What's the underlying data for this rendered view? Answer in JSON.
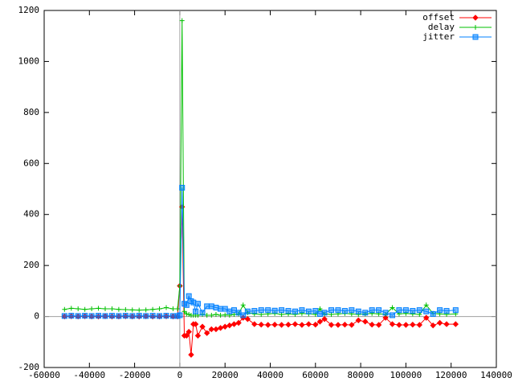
{
  "chart_data": {
    "type": "line",
    "x": [
      -51000,
      -48000,
      -45000,
      -42000,
      -39000,
      -36000,
      -33000,
      -30000,
      -27000,
      -24000,
      -21000,
      -18000,
      -15000,
      -12000,
      -9000,
      -6000,
      -3000,
      -1000,
      0,
      1000,
      2000,
      3000,
      4000,
      5000,
      6000,
      7000,
      8000,
      10000,
      12000,
      14000,
      16000,
      18000,
      20000,
      22000,
      24000,
      26000,
      28000,
      30000,
      33000,
      36000,
      39000,
      42000,
      45000,
      48000,
      51000,
      54000,
      57000,
      60000,
      62000,
      64000,
      67000,
      70000,
      73000,
      76000,
      79000,
      82000,
      85000,
      88000,
      91000,
      94000,
      97000,
      100000,
      103000,
      106000,
      109000,
      112000,
      115000,
      118000,
      122000
    ],
    "series": [
      {
        "name": "offset",
        "color": "#ff0000",
        "marker": "diamond",
        "values": [
          0,
          1,
          0,
          1,
          0,
          0,
          1,
          0,
          0,
          1,
          0,
          0,
          1,
          0,
          0,
          1,
          0,
          0,
          120,
          430,
          -75,
          -75,
          -60,
          -150,
          -30,
          -30,
          -75,
          -40,
          -65,
          -50,
          -50,
          -45,
          -40,
          -35,
          -30,
          -25,
          -5,
          -10,
          -30,
          -32,
          -33,
          -32,
          -33,
          -32,
          -30,
          -33,
          -30,
          -32,
          -20,
          -10,
          -33,
          -33,
          -32,
          -33,
          -15,
          -20,
          -32,
          -33,
          -5,
          -30,
          -33,
          -33,
          -32,
          -33,
          -5,
          -35,
          -25,
          -30,
          -30
        ]
      },
      {
        "name": "delay",
        "color": "#00c000",
        "marker": "plus",
        "values": [
          28,
          32,
          30,
          28,
          30,
          32,
          30,
          30,
          28,
          27,
          26,
          25,
          26,
          28,
          30,
          35,
          30,
          30,
          120,
          1160,
          20,
          10,
          8,
          5,
          5,
          5,
          5,
          8,
          5,
          5,
          8,
          5,
          6,
          5,
          8,
          10,
          45,
          15,
          10,
          8,
          10,
          12,
          8,
          10,
          8,
          12,
          10,
          8,
          30,
          10,
          8,
          10,
          12,
          10,
          8,
          10,
          12,
          10,
          8,
          35,
          10,
          12,
          10,
          8,
          45,
          12,
          10,
          8,
          10
        ]
      },
      {
        "name": "jitter",
        "color": "#0080ff",
        "marker": "square",
        "values": [
          2,
          3,
          2,
          3,
          2,
          3,
          2,
          3,
          2,
          3,
          2,
          3,
          2,
          3,
          2,
          3,
          2,
          2,
          5,
          505,
          50,
          45,
          80,
          60,
          55,
          20,
          50,
          15,
          40,
          40,
          35,
          30,
          30,
          20,
          25,
          15,
          5,
          20,
          22,
          25,
          25,
          23,
          25,
          22,
          20,
          25,
          20,
          22,
          10,
          15,
          25,
          25,
          22,
          25,
          20,
          15,
          25,
          25,
          15,
          5,
          25,
          25,
          22,
          25,
          20,
          10,
          25,
          22,
          25
        ]
      }
    ],
    "xlim": [
      -60000,
      140000
    ],
    "ylim": [
      -200,
      1200
    ],
    "xticks": [
      -60000,
      -40000,
      -20000,
      0,
      20000,
      40000,
      60000,
      80000,
      100000,
      120000,
      140000
    ],
    "yticks": [
      -200,
      0,
      200,
      400,
      600,
      800,
      1000,
      1200
    ],
    "zero_axes": true,
    "legend": "top-right"
  }
}
